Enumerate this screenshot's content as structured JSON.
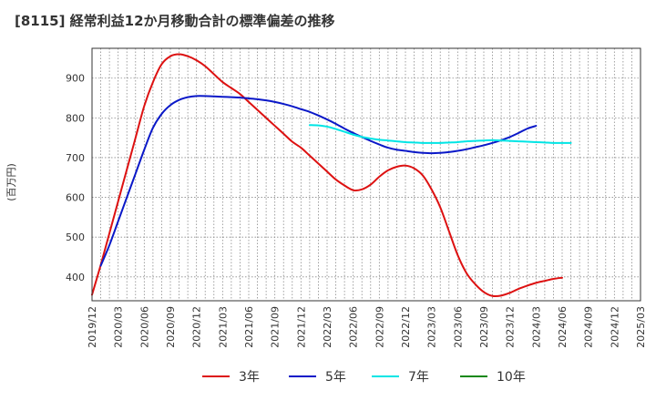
{
  "chart_data": {
    "type": "line",
    "title": "[8115]  経常利益12か月移動合計の標準偏差の推移",
    "ylabel": "(百万円)",
    "xlabel": "",
    "ylim": [
      340,
      975
    ],
    "yticks": [
      400,
      500,
      600,
      700,
      800,
      900
    ],
    "xticks": [
      "2019/12",
      "2020/03",
      "2020/06",
      "2020/09",
      "2020/12",
      "2021/03",
      "2021/06",
      "2021/09",
      "2021/12",
      "2022/03",
      "2022/06",
      "2022/09",
      "2022/12",
      "2023/03",
      "2023/06",
      "2023/09",
      "2023/12",
      "2024/03",
      "2024/06",
      "2024/09",
      "2024/12",
      "2025/03"
    ],
    "grid": true,
    "legend_position": "bottom",
    "series": [
      {
        "name": "3年",
        "color": "#dd1111",
        "start": "2019/12",
        "values": [
          355,
          430,
          510,
          590,
          670,
          750,
          830,
          890,
          935,
          955,
          960,
          955,
          945,
          930,
          910,
          890,
          875,
          860,
          840,
          820,
          800,
          780,
          760,
          740,
          725,
          705,
          685,
          665,
          645,
          630,
          618,
          620,
          632,
          652,
          668,
          677,
          680,
          673,
          655,
          620,
          575,
          515,
          455,
          410,
          382,
          362,
          352,
          353,
          360,
          370,
          378,
          385,
          390,
          395,
          398
        ]
      },
      {
        "name": "5年",
        "color": "#0a18c8",
        "start": "2020/01",
        "values": [
          428,
          480,
          540,
          600,
          660,
          720,
          775,
          810,
          832,
          845,
          852,
          855,
          855,
          854,
          853,
          852,
          851,
          849,
          847,
          844,
          840,
          835,
          829,
          822,
          815,
          806,
          796,
          785,
          773,
          762,
          752,
          742,
          733,
          725,
          720,
          717,
          714,
          712,
          711,
          712,
          714,
          717,
          721,
          726,
          731,
          737,
          744,
          752,
          762,
          773,
          780
        ]
      },
      {
        "name": "7年",
        "color": "#00e5e5",
        "start": "2022/01",
        "values": [
          782,
          781,
          778,
          772,
          765,
          758,
          752,
          748,
          745,
          743,
          741,
          739,
          738,
          737,
          737,
          737,
          738,
          739,
          741,
          742,
          743,
          744,
          743,
          742,
          741,
          740,
          739,
          738,
          737,
          737,
          737
        ]
      },
      {
        "name": "10年",
        "color": "#118811",
        "start": "",
        "values": []
      }
    ]
  }
}
